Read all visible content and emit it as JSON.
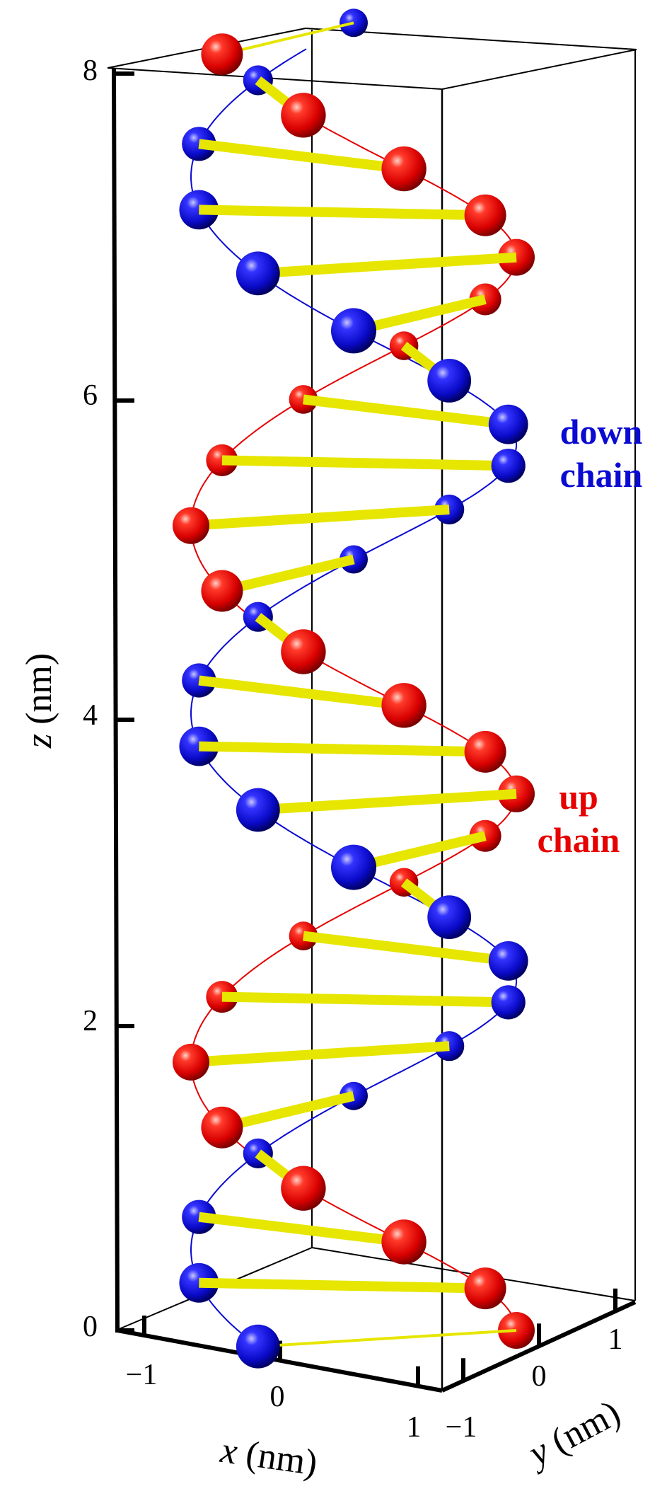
{
  "colors": {
    "up_chain": "#e60000",
    "down_chain": "#0a0ad2",
    "base_pair": "#e6e600",
    "box": "#000000"
  },
  "axes": {
    "z": {
      "label_var": "z",
      "label_unit": " (nm)",
      "ticks": [
        "0",
        "2",
        "4",
        "6",
        "8"
      ],
      "range": [
        0,
        8
      ]
    },
    "x": {
      "label_var": "x",
      "label_unit": " (nm)",
      "ticks": [
        "−1",
        "0",
        "1"
      ],
      "range": [
        -1.2,
        1.2
      ]
    },
    "y": {
      "label_var": "y",
      "label_unit": " (nm)",
      "ticks": [
        "−1",
        "0",
        "1"
      ],
      "range": [
        -1.2,
        1.2
      ]
    }
  },
  "labels": {
    "down_line1": "down",
    "down_line2": "chain",
    "up_line1": "up",
    "up_line2": "chain"
  }
}
